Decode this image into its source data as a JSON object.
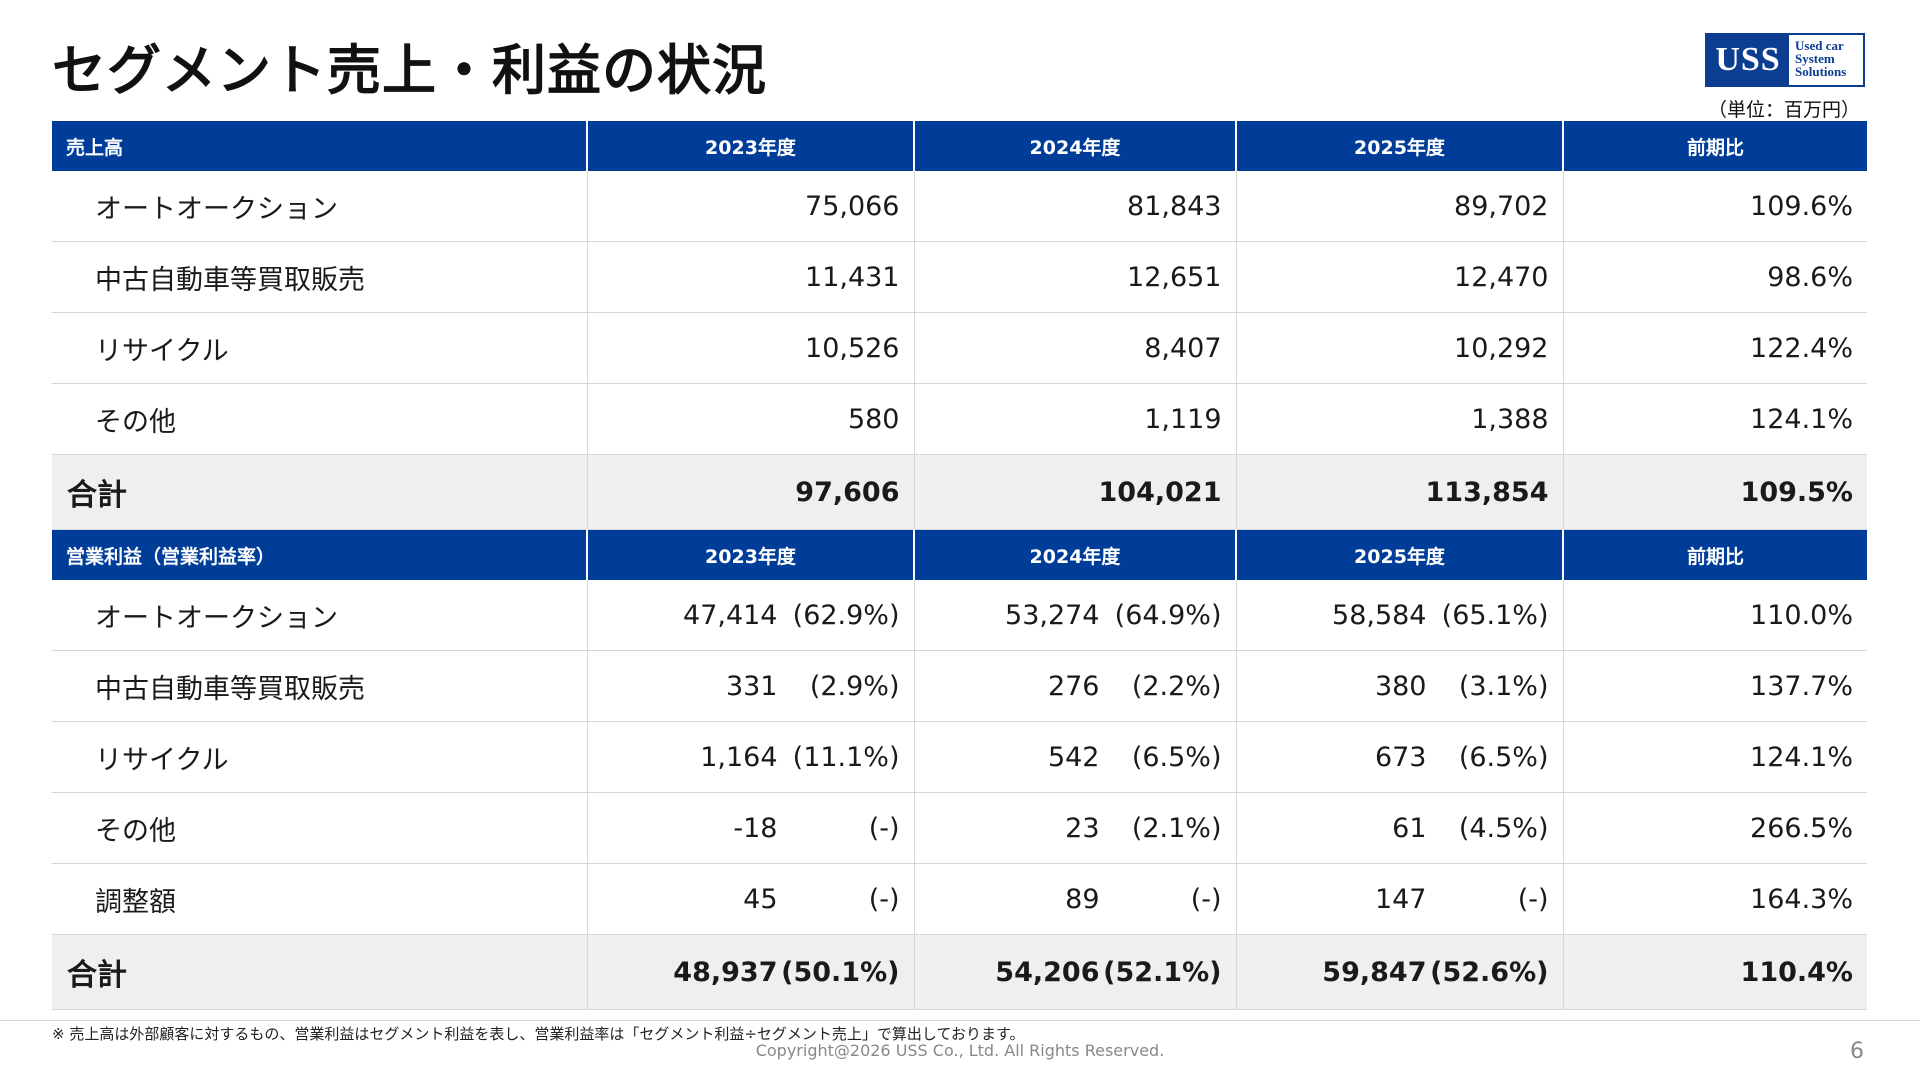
{
  "title": "セグメント売上・利益の状況",
  "logo": {
    "main": "USS",
    "sub1": "Used car",
    "sub2": "System",
    "sub3": "Solutions"
  },
  "unit_note": "（単位：百万円）",
  "sales": {
    "header": [
      "売上高",
      "2023年度",
      "2024年度",
      "2025年度",
      "前期比"
    ],
    "rows": [
      {
        "label": "オートオークション",
        "v": [
          "75,066",
          "81,843",
          "89,702"
        ],
        "ratio": "109.6%"
      },
      {
        "label": "中古自動車等買取販売",
        "v": [
          "11,431",
          "12,651",
          "12,470"
        ],
        "ratio": "98.6%"
      },
      {
        "label": "リサイクル",
        "v": [
          "10,526",
          "8,407",
          "10,292"
        ],
        "ratio": "122.4%"
      },
      {
        "label": "その他",
        "v": [
          "580",
          "1,119",
          "1,388"
        ],
        "ratio": "124.1%"
      }
    ],
    "total": {
      "label": "合計",
      "v": [
        "97,606",
        "104,021",
        "113,854"
      ],
      "ratio": "109.5%"
    }
  },
  "profit": {
    "header": [
      "営業利益（営業利益率）",
      "2023年度",
      "2024年度",
      "2025年度",
      "前期比"
    ],
    "rows": [
      {
        "label": "オートオークション",
        "v": [
          "47,414",
          "53,274",
          "58,584"
        ],
        "p": [
          "(62.9%)",
          "(64.9%)",
          "(65.1%)"
        ],
        "ratio": "110.0%"
      },
      {
        "label": "中古自動車等買取販売",
        "v": [
          "331",
          "276",
          "380"
        ],
        "p": [
          "(2.9%)",
          "(2.2%)",
          "(3.1%)"
        ],
        "ratio": "137.7%"
      },
      {
        "label": "リサイクル",
        "v": [
          "1,164",
          "542",
          "673"
        ],
        "p": [
          "(11.1%)",
          "(6.5%)",
          "(6.5%)"
        ],
        "ratio": "124.1%"
      },
      {
        "label": "その他",
        "v": [
          "-18",
          "23",
          "61"
        ],
        "p": [
          "(-)",
          "(2.1%)",
          "(4.5%)"
        ],
        "ratio": "266.5%"
      },
      {
        "label": "調整額",
        "v": [
          "45",
          "89",
          "147"
        ],
        "p": [
          "(-)",
          "(-)",
          "(-)"
        ],
        "ratio": "164.3%"
      }
    ],
    "total": {
      "label": "合計",
      "v": [
        "48,937",
        "54,206",
        "59,847"
      ],
      "p": [
        "(50.1%)",
        "(52.1%)",
        "(52.6%)"
      ],
      "ratio": "110.4%"
    }
  },
  "footnote": "※ 売上高は外部顧客に対するもの、営業利益はセグメント利益を表し、営業利益率は「セグメント利益÷セグメント売上」で算出しております。",
  "copyright": "Copyright@2026 USS Co., Ltd. All Rights Reserved.",
  "page_number": "6"
}
